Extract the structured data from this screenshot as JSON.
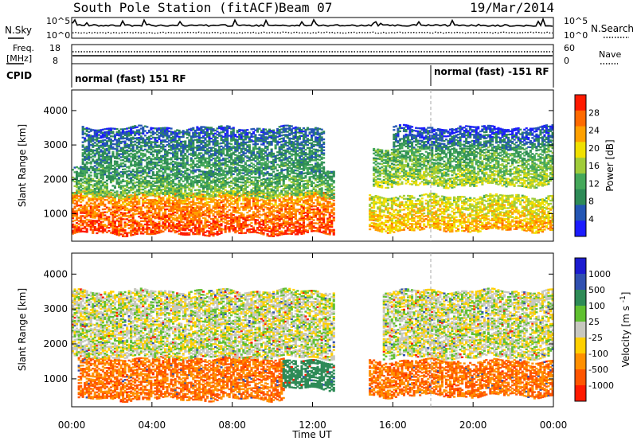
{
  "header": {
    "station_title": "South Pole Station (fitACF)",
    "beam_label": "Beam 07",
    "date_label": "19/Mar/2014"
  },
  "top_panel": {
    "n_sky_label": "N.Sky",
    "n_search_label": "N.Search",
    "noise_tick_top_left": "10^5",
    "noise_tick_bottom_left": "10^0",
    "noise_tick_top_right": "10^5",
    "noise_tick_bottom_right": "10^0",
    "freq_label_line1": "Freq.",
    "freq_label_line2": "[MHz]",
    "freq_tick_top": "18",
    "freq_tick_bottom": "8",
    "nave_label": "Nave",
    "nave_tick_top": "60",
    "nave_tick_bottom": "0",
    "cpid_label": "CPID",
    "cpid_mode_1": "normal (fast) 151 RF",
    "cpid_mode_2": "normal (fast) -151 RF"
  },
  "x_axis": {
    "title": "Time UT",
    "ticks": [
      "00:00",
      "04:00",
      "08:00",
      "12:00",
      "16:00",
      "20:00",
      "00:00"
    ]
  },
  "colors": {
    "power_scale": [
      "#1c1cff",
      "#2456b4",
      "#2e8b57",
      "#45a85a",
      "#a0cc3a",
      "#f0e000",
      "#ffa000",
      "#ff6a00",
      "#ff1a00"
    ],
    "velocity_scale": [
      "#1c1cd0",
      "#3050b0",
      "#2e8b57",
      "#60c030",
      "#c8c8c0",
      "#ffd000",
      "#ff9000",
      "#ff5500",
      "#ff1a00"
    ]
  },
  "chart_data": [
    {
      "type": "heatmap",
      "panel": "power",
      "ylabel": "Slant Range [km]",
      "xlabel": "",
      "x_unit": "hours UT",
      "ylim": [
        200,
        4600
      ],
      "yticks": [
        "1000",
        "2000",
        "3000",
        "4000"
      ],
      "colorbar": {
        "label": "Power [dB]",
        "ticks": [
          "4",
          "8",
          "12",
          "16",
          "20",
          "24",
          "28"
        ],
        "range": [
          0,
          32
        ]
      },
      "bands": [
        {
          "t_start": 0.0,
          "t_end": 13.0,
          "range_low": 400,
          "range_high": 1600,
          "value": 26
        },
        {
          "t_start": 0.0,
          "t_end": 13.0,
          "range_low": 1500,
          "range_high": 2300,
          "value": 12
        },
        {
          "t_start": 0.5,
          "t_end": 12.5,
          "range_low": 2300,
          "range_high": 3500,
          "value": 8
        },
        {
          "t_start": 14.8,
          "t_end": 24.0,
          "range_low": 500,
          "range_high": 1500,
          "value": 20
        },
        {
          "t_start": 15.0,
          "t_end": 24.0,
          "range_low": 1800,
          "range_high": 2900,
          "value": 14
        },
        {
          "t_start": 16.0,
          "t_end": 24.0,
          "range_low": 2900,
          "range_high": 3500,
          "value": 6
        }
      ]
    },
    {
      "type": "heatmap",
      "panel": "velocity",
      "ylabel": "Slant Range [km]",
      "xlabel": "Time UT",
      "x_unit": "hours UT",
      "ylim": [
        200,
        4600
      ],
      "yticks": [
        "1000",
        "2000",
        "3000",
        "4000"
      ],
      "colorbar": {
        "label": "Velocity [m s^-1]",
        "ticks": [
          "1000",
          "500",
          "100",
          "25",
          "-25",
          "-100",
          "-500",
          "-1000"
        ]
      },
      "bands": [
        {
          "t_start": 0.3,
          "t_end": 10.5,
          "range_low": 400,
          "range_high": 1600,
          "value": -300
        },
        {
          "t_start": 10.5,
          "t_end": 13.0,
          "range_low": 700,
          "range_high": 1500,
          "value": 200
        },
        {
          "t_start": 0.0,
          "t_end": 13.0,
          "range_low": 1600,
          "range_high": 3500,
          "value": 0
        },
        {
          "t_start": 14.8,
          "t_end": 24.0,
          "range_low": 500,
          "range_high": 1500,
          "value": -300
        },
        {
          "t_start": 15.5,
          "t_end": 24.0,
          "range_low": 1600,
          "range_high": 3500,
          "value": 0
        }
      ]
    }
  ]
}
